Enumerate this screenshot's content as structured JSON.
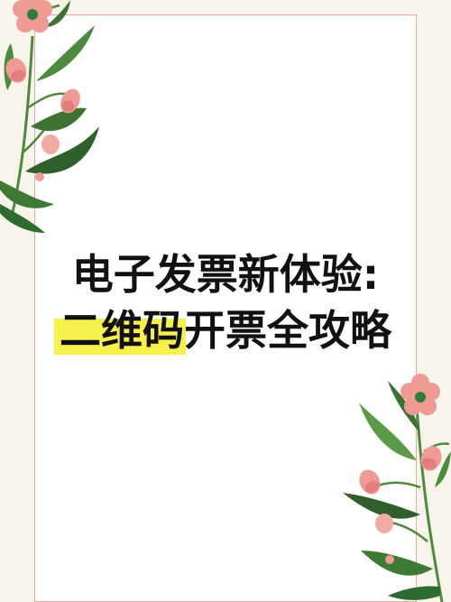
{
  "colors": {
    "background": "#f7f4ec",
    "card": "#ffffff",
    "border": "#e8a9a4",
    "title_text": "#111111",
    "highlight": "#f6f04a",
    "petal": "#f09a95",
    "flower_center": "#2f7a3e",
    "leaf": "#3f7a35"
  },
  "title": {
    "line1": "电子发票新体验:",
    "line2_highlight": "二维码",
    "line2_rest": "开票全攻略"
  },
  "decorations": {
    "top_left_icon": "floral-branch-icon",
    "bottom_right_icon": "floral-branch-icon"
  }
}
